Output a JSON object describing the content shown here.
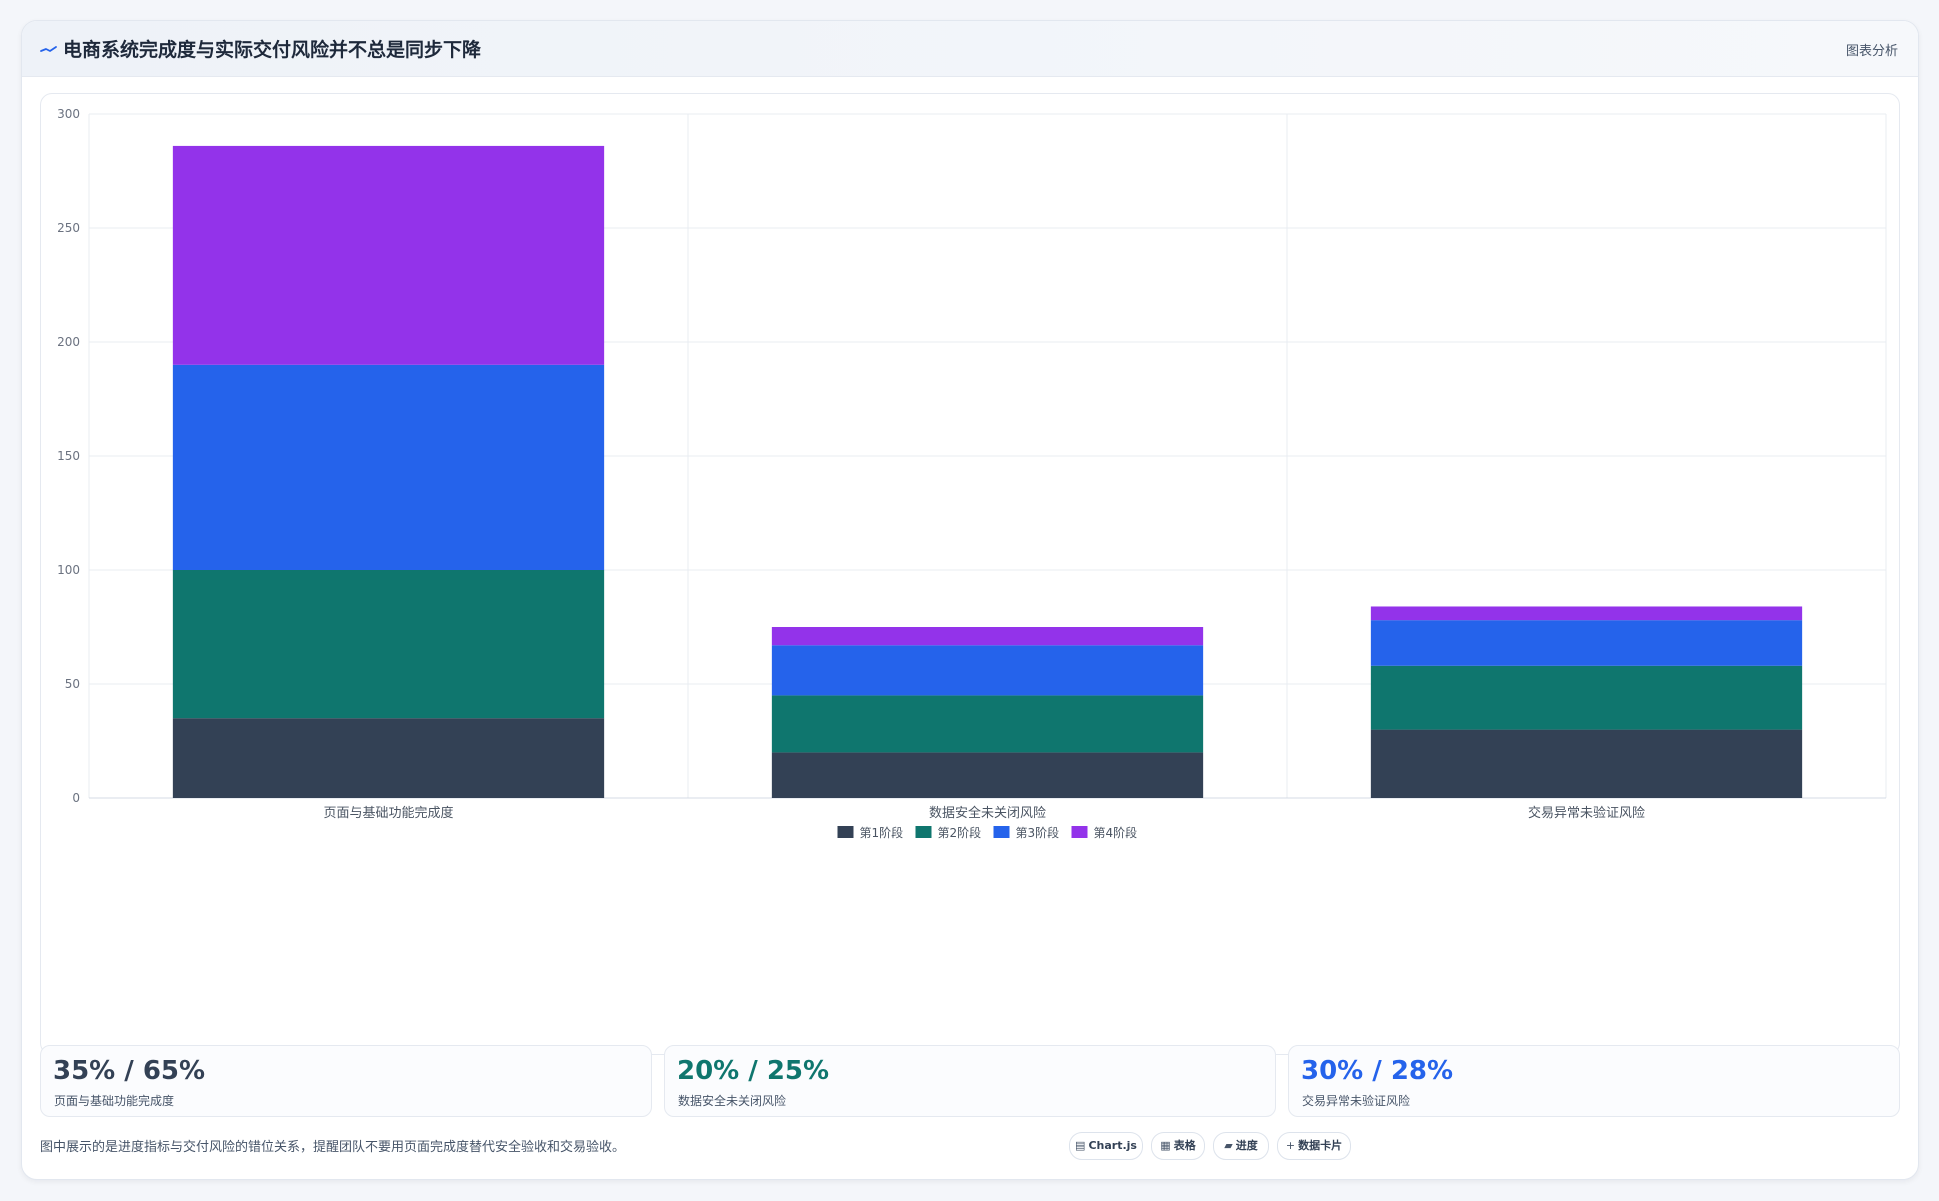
{
  "header": {
    "title": "电商系统完成度与实际交付风险并不总是同步下降",
    "action_label": "图表分析"
  },
  "colors": {
    "stage1": "#334155",
    "stage2": "#0f766e",
    "stage3": "#2563eb",
    "stage4": "#9333ea",
    "grid": "#e8ecf2",
    "tick_text": "#6b7280"
  },
  "chart_data": {
    "type": "bar",
    "stacked": true,
    "categories": [
      "页面与基础功能完成度",
      "数据安全未关闭风险",
      "交易异常未验证风险"
    ],
    "series": [
      {
        "name": "第1阶段",
        "values": [
          35,
          20,
          30
        ]
      },
      {
        "name": "第2阶段",
        "values": [
          65,
          25,
          28
        ]
      },
      {
        "name": "第3阶段",
        "values": [
          90,
          22,
          20
        ]
      },
      {
        "name": "第4阶段",
        "values": [
          96,
          8,
          6
        ]
      }
    ],
    "ylim": [
      0,
      300
    ],
    "yticks": [
      0,
      50,
      100,
      150,
      200,
      250,
      300
    ],
    "grid": true,
    "legend": "bottom-center"
  },
  "kpis": [
    {
      "value": "35% / 65%",
      "label": "页面与基础功能完成度",
      "color": "#334155"
    },
    {
      "value": "20% / 25%",
      "label": "数据安全未关闭风险",
      "color": "#0f766e"
    },
    {
      "value": "30% / 28%",
      "label": "交易异常未验证风险",
      "color": "#2563eb"
    }
  ],
  "footnote": "图中展示的是进度指标与交付风险的错位关系，提醒团队不要用页面完成度替代安全验收和交易验收。",
  "chips": [
    {
      "icon": "▤",
      "icon_name": "chart-icon",
      "label": "Chart.js"
    },
    {
      "icon": "▦",
      "icon_name": "table-icon",
      "label": "表格"
    },
    {
      "icon": "▰",
      "icon_name": "progress-icon",
      "label": "进度"
    },
    {
      "icon": "+",
      "icon_name": "data-card-icon",
      "label": "数据卡片"
    }
  ]
}
